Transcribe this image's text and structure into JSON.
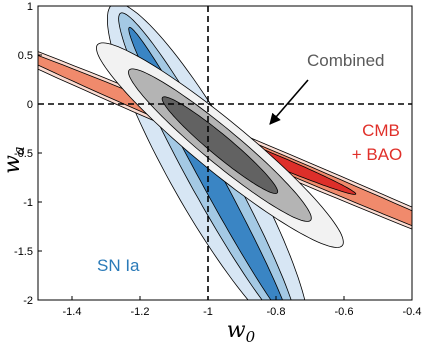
{
  "chart_data": {
    "type": "contour",
    "xlabel": "w",
    "xlabel_sub": "0",
    "ylabel": "w",
    "ylabel_sub": "a",
    "xlim": [
      -1.5,
      -0.4
    ],
    "ylim": [
      -2,
      1
    ],
    "xticks": [
      -1.4,
      -1.2,
      -1,
      -0.8,
      -0.6,
      -0.4
    ],
    "xtick_labels": [
      "-1.4",
      "-1.2",
      "-1",
      "-0.8",
      "-0.6",
      "-0.4"
    ],
    "yticks": [
      -2,
      -1.5,
      -1,
      -0.5,
      0,
      0.5,
      1
    ],
    "ytick_labels": [
      "-2",
      "-1.5",
      "-1",
      "-0.5",
      "0",
      "0.5",
      "1"
    ],
    "reference_lines": {
      "x": -1,
      "y": 0,
      "style": "dashed"
    },
    "series": [
      {
        "name": "SN Ia",
        "label_color": "#2a7ab8",
        "center": [
          -1.0,
          -0.7
        ],
        "direction": [
          0.42,
          -2.7
        ],
        "contours": [
          {
            "level": "2-sigma",
            "long_semi": 1.75,
            "short_semi": 0.125,
            "fill": "#d7e6f4"
          },
          {
            "level": "1-sigma",
            "long_semi": 1.65,
            "short_semi": 0.07,
            "fill": "#a4c9e4"
          },
          {
            "level": "0.5-sigma",
            "long_semi": 1.5,
            "short_semi": 0.035,
            "fill": "#3a85c4"
          }
        ]
      },
      {
        "name": "CMB + BAO",
        "label": [
          "CMB",
          "+ BAO"
        ],
        "label_color": "#e0302a",
        "center": [
          -0.82,
          -0.55
        ],
        "direction": [
          0.34,
          -0.5
        ],
        "contours": [
          {
            "level": "2-sigma",
            "long_semi": 1.75,
            "short_semi": 0.07,
            "fill": "#fbdcd2"
          },
          {
            "level": "1-sigma",
            "long_semi": 1.45,
            "short_semi": 0.05,
            "fill": "#f08a6c"
          },
          {
            "level": "0.5-sigma",
            "long_semi": 0.45,
            "short_semi": 0.035,
            "fill": "#dd2f2a"
          }
        ]
      },
      {
        "name": "Combined",
        "label_color": "#5a5a5a",
        "center": [
          -0.965,
          -0.42
        ],
        "direction": [
          0.2,
          -0.6
        ],
        "contours": [
          {
            "level": "2-sigma",
            "long_semi": 1.1,
            "short_semi": 0.11,
            "fill": "#f2f2f2"
          },
          {
            "level": "1-sigma",
            "long_semi": 0.82,
            "short_semi": 0.075,
            "fill": "#b4b4b4"
          },
          {
            "level": "0.5-sigma",
            "long_semi": 0.52,
            "short_semi": 0.045,
            "fill": "#626262"
          }
        ]
      }
    ],
    "annotations": [
      {
        "text": "Combined",
        "arrow_to": [
          -0.92,
          -0.2
        ]
      }
    ]
  }
}
